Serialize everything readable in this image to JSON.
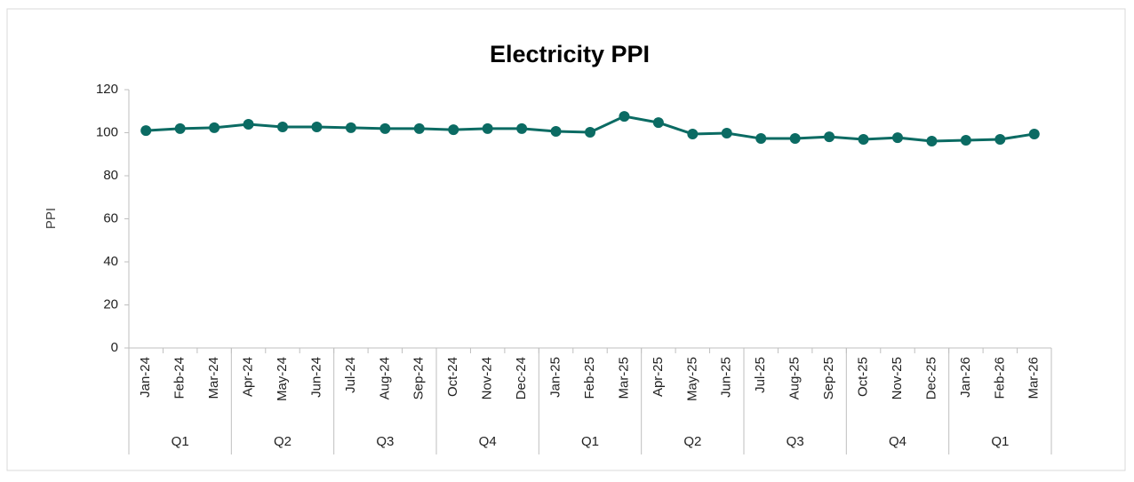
{
  "chart_data": {
    "type": "line",
    "title": "Electricity PPI",
    "y_label": "PPI",
    "categories": [
      "Jan-24",
      "Feb-24",
      "Mar-24",
      "Apr-24",
      "May-24",
      "Jun-24",
      "Jul-24",
      "Aug-24",
      "Sep-24",
      "Oct-24",
      "Nov-24",
      "Dec-24",
      "Jan-25",
      "Feb-25",
      "Mar-25",
      "Apr-25",
      "May-25",
      "Jun-25",
      "Jul-25",
      "Aug-25",
      "Sep-25",
      "Oct-25",
      "Nov-25",
      "Dec-25",
      "Jan-26",
      "Feb-26",
      "Mar-26"
    ],
    "groups": [
      "Q1",
      "Q2",
      "Q3",
      "Q4",
      "Q1",
      "Q2",
      "Q3",
      "Q4",
      "Q1"
    ],
    "series": [
      {
        "name": "PPI",
        "color": "#0b6b63",
        "values": [
          101.0,
          101.9,
          102.3,
          103.9,
          102.7,
          102.7,
          102.3,
          101.9,
          101.9,
          101.4,
          101.9,
          101.9,
          100.6,
          100.2,
          107.6,
          104.7,
          99.4,
          99.8,
          97.3,
          97.3,
          98.1,
          96.9,
          97.7,
          96.1,
          96.5,
          96.9,
          99.4
        ]
      }
    ],
    "ylim": [
      0,
      120
    ],
    "yticks": [
      0,
      20,
      40,
      60,
      80,
      100,
      120
    ],
    "grid": false
  }
}
